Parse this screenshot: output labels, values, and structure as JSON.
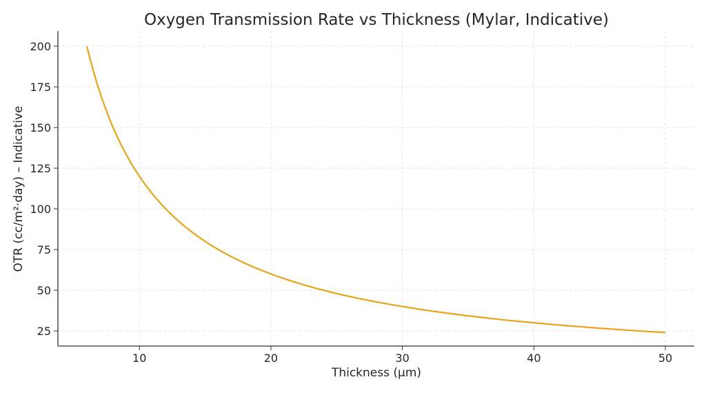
{
  "chart_data": {
    "type": "line",
    "title": "Oxygen Transmission Rate vs Thickness (Mylar, Indicative)",
    "xlabel": "Thickness (µm)",
    "ylabel": "OTR (cc/m²·day) – Indicative",
    "xlim": [
      3.8,
      52.2
    ],
    "ylim": [
      15.7,
      209.3
    ],
    "xticks": [
      10,
      20,
      30,
      40,
      50
    ],
    "yticks": [
      25,
      50,
      75,
      100,
      125,
      150,
      175,
      200
    ],
    "grid": true,
    "line_color": "#E8A317",
    "series": [
      {
        "x": [
          6,
          7,
          8,
          9,
          10,
          11,
          12,
          13,
          14,
          15,
          16,
          17,
          18,
          19,
          20,
          21,
          22,
          23,
          24,
          25,
          26,
          27,
          28,
          29,
          30,
          31,
          32,
          33,
          34,
          35,
          36,
          37,
          38,
          39,
          40,
          41,
          42,
          43,
          44,
          45,
          46,
          47,
          48,
          49,
          50
        ],
        "values": [
          200,
          171.43,
          150,
          133.33,
          120,
          109.09,
          100,
          92.31,
          85.71,
          80,
          75,
          70.59,
          66.67,
          63.16,
          60,
          57.14,
          54.55,
          52.17,
          50,
          48,
          46.15,
          44.44,
          42.86,
          41.38,
          40,
          38.71,
          37.5,
          36.36,
          35.29,
          34.29,
          33.33,
          32.43,
          31.58,
          30.77,
          30,
          29.27,
          28.57,
          27.91,
          27.27,
          26.67,
          26.09,
          25.53,
          25,
          24.49,
          24
        ]
      }
    ]
  }
}
